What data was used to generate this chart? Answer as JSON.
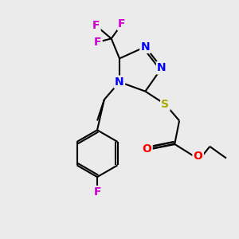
{
  "background_color": "#ebebeb",
  "bond_color": "#000000",
  "N_color": "#0000ff",
  "S_color": "#aaaa00",
  "O_color": "#ff0000",
  "F_color": "#cc00cc",
  "font_size": 10,
  "figsize": [
    3.0,
    3.0
  ],
  "dpi": 100,
  "xlim": [
    0,
    10
  ],
  "ylim": [
    0,
    10
  ]
}
